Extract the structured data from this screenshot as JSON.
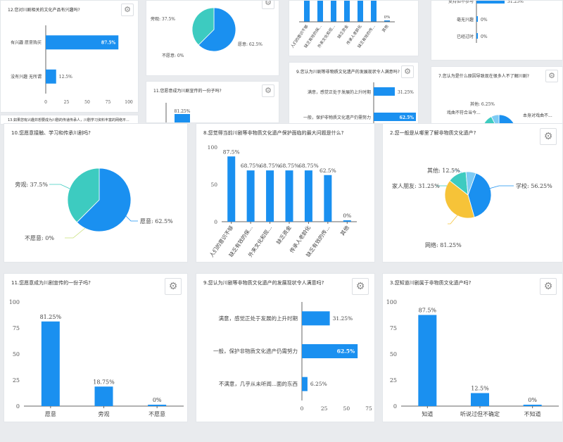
{
  "colors": {
    "blue": "#1a90f0",
    "teal": "#3dcbc0",
    "yellow": "#f6c338",
    "lightblue": "#7ecbf4",
    "gray": "#9a9a9a"
  },
  "chart_data": [
    {
      "id": "c12",
      "type": "bar",
      "orientation": "horizontal",
      "title": "12.您对川剧相关的文化产品有兴趣吗?",
      "categories": [
        "有兴趣 愿意购买",
        "没有兴趣 无所谓"
      ],
      "values": [
        87.5,
        12.5
      ],
      "value_labels": [
        "87.5%",
        "12.5%"
      ],
      "xticks": [
        0,
        25,
        50,
        75,
        100
      ],
      "xlim": [
        0,
        100
      ]
    },
    {
      "id": "p10small",
      "type": "pie",
      "categories": [
        "旁观",
        "愿意",
        "不愿意"
      ],
      "values": [
        37.5,
        62.5,
        0
      ],
      "labels": [
        "旁观: 37.5%",
        "愿意: 62.5%",
        "不愿意: 0%"
      ]
    },
    {
      "id": "b8small",
      "type": "bar",
      "categories": [
        "人们的意识不够",
        "缺乏有效的保...",
        "外来文化和现...",
        "缺乏资金",
        "传承人老龄化",
        "缺乏有效的传...",
        "其他"
      ],
      "values": [
        87.5,
        68.75,
        68.75,
        68.75,
        68.75,
        62.5,
        0
      ],
      "value_labels": [
        "0%"
      ]
    },
    {
      "id": "b6small",
      "type": "bar",
      "orientation": "horizontal",
      "categories": [
        "支持但不参与",
        "毫无兴趣",
        "已经过时"
      ],
      "values": [
        31.25,
        0,
        0
      ],
      "value_labels": [
        "31.25%",
        "0%",
        "0%"
      ]
    },
    {
      "id": "b9small",
      "type": "bar",
      "orientation": "horizontal",
      "title": "9.您认为川剧等非物质文化遗产的发展现状令人满意吗?",
      "categories": [
        "满意，感觉正处于发展的上升时期",
        "一般，保护非物质文化遗产仍需努力"
      ],
      "values": [
        31.25,
        62.5
      ],
      "value_labels": [
        "31.25%",
        "62.5%"
      ]
    },
    {
      "id": "p7small",
      "type": "pie",
      "title": "7.您认为是什么原因导致现在很多人不了解川剧?",
      "labels": [
        "其他: 6.25%",
        "戏曲不符合当今...",
        "本身对戏曲不..."
      ]
    },
    {
      "id": "b11small",
      "type": "bar",
      "title": "11.您愿意成为川剧宣传的一份子吗?",
      "values": [
        81.25
      ],
      "value_labels": [
        "81.25%"
      ]
    },
    {
      "id": "c13",
      "type": "bar",
      "title": "13.如果您有兴趣并想要成为川剧的传递传承人，川剧学习资料丰富的网络平..."
    },
    {
      "id": "c10",
      "type": "pie",
      "title": "10.您愿意接触、学习和传承川剧吗?",
      "categories": [
        "旁观",
        "愿意",
        "不愿意"
      ],
      "values": [
        37.5,
        62.5,
        0
      ],
      "labels": [
        "旁观: 37.5%",
        "愿意: 62.5%",
        "不愿意: 0%"
      ]
    },
    {
      "id": "c8",
      "type": "bar",
      "title": "8.您觉得当前川剧等非物质文化遗产保护面临的最大问题是什么?",
      "categories": [
        "人们的意识不够",
        "缺乏有效的保...",
        "外来文化和现...",
        "缺乏资金",
        "传承人老龄化",
        "缺乏有效的传...",
        "其他"
      ],
      "values": [
        87.5,
        68.75,
        68.75,
        68.75,
        68.75,
        62.5,
        0
      ],
      "value_labels": [
        "87.5%",
        "68.75%",
        "68.75%",
        "68.75%",
        "68.75%",
        "62.5%",
        "0%"
      ],
      "yticks": [
        0,
        50,
        100
      ],
      "ylim": [
        0,
        100
      ]
    },
    {
      "id": "c2",
      "type": "pie",
      "title": "2.您一般是从哪里了解非物质文化遗产?",
      "categories": [
        "学校",
        "网络",
        "家人朋友",
        "其他"
      ],
      "values": [
        56.25,
        81.25,
        31.25,
        12.5
      ],
      "labels": [
        "学校: 56.25%",
        "网络: 81.25%",
        "家人朋友: 31.25%",
        "其他: 12.5%"
      ]
    },
    {
      "id": "c11",
      "type": "bar",
      "title": "11.您愿意成为川剧宣传的一份子吗?",
      "categories": [
        "愿意",
        "旁观",
        "不愿意"
      ],
      "values": [
        81.25,
        18.75,
        0
      ],
      "value_labels": [
        "81.25%",
        "18.75%",
        "0%"
      ],
      "yticks": [
        0,
        25,
        50,
        75,
        100
      ],
      "ylim": [
        0,
        100
      ]
    },
    {
      "id": "c9",
      "type": "bar",
      "orientation": "horizontal",
      "title": "9.您认为川剧等非物质文化遗产的发展现状令人满意吗?",
      "categories": [
        "满意，感觉正处于发展的上升时期",
        "一般，保护非物质文化遗产仍需努力",
        "不满意，几乎从未听闻...面的东西"
      ],
      "values": [
        31.25,
        62.5,
        6.25
      ],
      "value_labels": [
        "31.25%",
        "62.5%",
        "6.25%"
      ],
      "xticks": [
        0,
        25,
        50,
        75
      ],
      "xlim": [
        0,
        75
      ]
    },
    {
      "id": "c3",
      "type": "bar",
      "title": "3.您知道川剧属于非物质文化遗产吗?",
      "categories": [
        "知道",
        "听说过但不确定",
        "不知道"
      ],
      "values": [
        87.5,
        12.5,
        0
      ],
      "value_labels": [
        "87.5%",
        "12.5%",
        "0%"
      ],
      "yticks": [
        0,
        25,
        50,
        75,
        100
      ],
      "ylim": [
        0,
        100
      ]
    }
  ]
}
